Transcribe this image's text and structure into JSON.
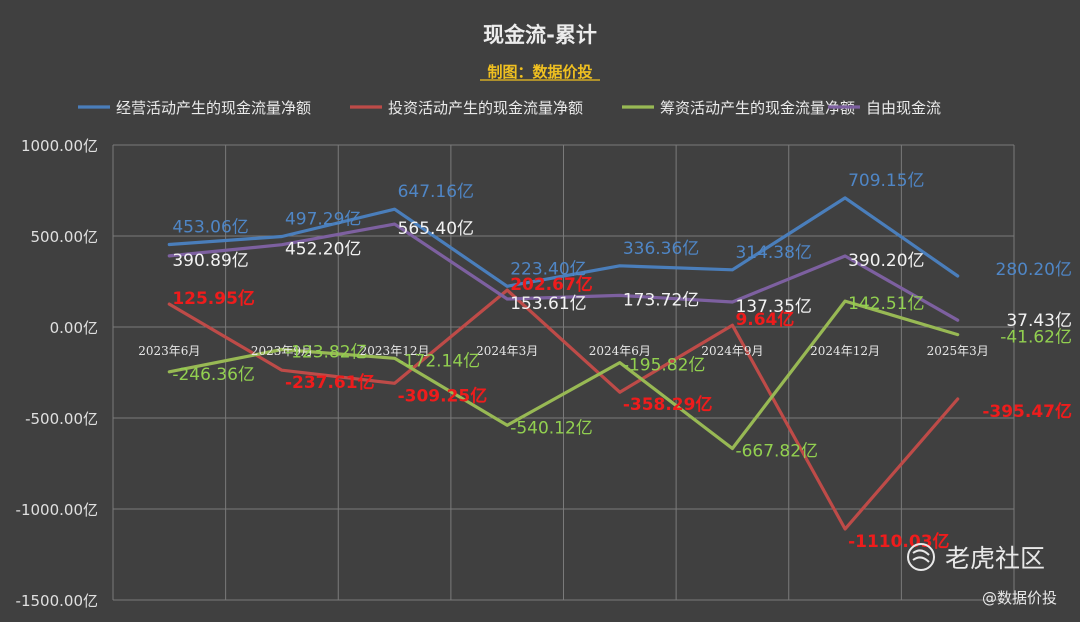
{
  "chart_data": {
    "type": "line",
    "title": "现金流-累计",
    "subtitle": "制图：数据价投",
    "categories": [
      "2023年6月",
      "2023年9月",
      "2023年12月",
      "2024年3月",
      "2024年6月",
      "2024年9月",
      "2024年12月",
      "2025年3月"
    ],
    "ylim": [
      -1500,
      1000
    ],
    "yticks": [
      1000,
      500,
      0,
      -500,
      -1000,
      -1500
    ],
    "ytick_labels": [
      "1000.00亿",
      "500.00亿",
      "0.00亿",
      "-500.00亿",
      "-1000.00亿",
      "-1500.00亿"
    ],
    "value_suffix": "亿",
    "grid": true,
    "legend_position": "top",
    "series": [
      {
        "name": "经营活动产生的现金流量净额",
        "color": "#4a7ebb",
        "values": [
          453.06,
          497.29,
          647.16,
          223.4,
          336.36,
          314.38,
          709.15,
          280.2
        ],
        "labels": [
          "453.06亿",
          "497.29亿",
          "647.16亿",
          "223.40亿",
          "336.36亿",
          "314.38亿",
          "709.15亿",
          "280.20亿"
        ]
      },
      {
        "name": "投资活动产生的现金流量净额",
        "color": "#be4b48",
        "values": [
          125.95,
          -237.61,
          -309.25,
          202.67,
          -358.29,
          9.64,
          -1110.03,
          -395.47
        ],
        "labels": [
          "125.95亿",
          "-237.61亿",
          "-309.25亿",
          "202.67亿",
          "-358.29亿",
          "9.64亿",
          "-1110.03亿",
          "-395.47亿"
        ]
      },
      {
        "name": "筹资活动产生的现金流量净额",
        "color": "#98b954",
        "values": [
          -246.36,
          -123.82,
          -172.14,
          -540.12,
          -195.82,
          -667.82,
          142.51,
          -41.62
        ],
        "labels": [
          "-246.36亿",
          "-123.82亿",
          "-172.14亿",
          "-540.12亿",
          "-195.82亿",
          "-667.82亿",
          "142.51亿",
          "-41.62亿"
        ]
      },
      {
        "name": "自由现金流",
        "color": "#7d60a0",
        "values": [
          390.89,
          452.2,
          565.4,
          153.61,
          173.72,
          137.35,
          390.2,
          37.43
        ],
        "labels": [
          "390.89亿",
          "452.20亿",
          "565.40亿",
          "153.61亿",
          "173.72亿",
          "137.35亿",
          "390.20亿",
          "37.43亿"
        ]
      }
    ]
  },
  "watermark": {
    "brand": "老虎社区",
    "author": "@数据价投",
    "icon": "tiger-community-logo-icon"
  }
}
